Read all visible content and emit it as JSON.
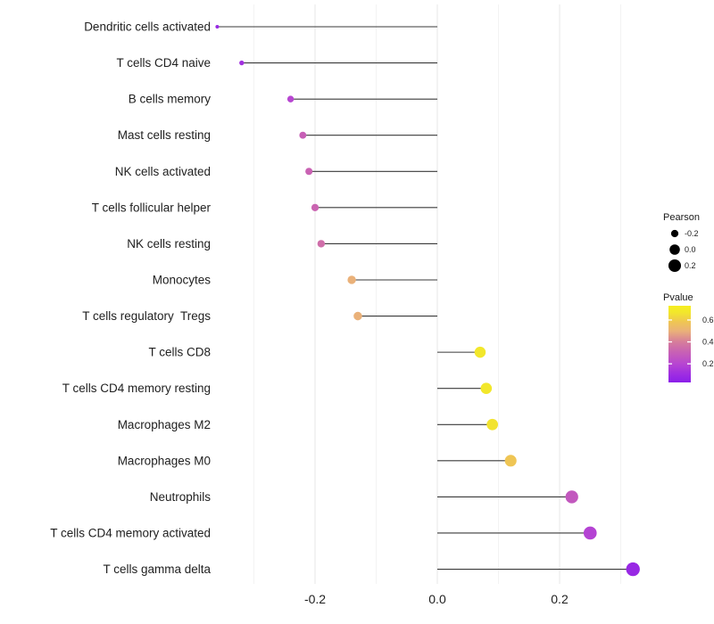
{
  "chart_data": {
    "type": "scatter",
    "subtype": "lollipop",
    "orientation": "horizontal",
    "title": "",
    "xlabel": "",
    "ylabel": "",
    "categories": [
      "Dendritic cells activated",
      "T cells CD4 naive",
      "B cells memory",
      "Mast cells resting",
      "NK cells activated",
      "T cells follicular helper",
      "NK cells resting",
      "Monocytes",
      "T cells regulatory  Tregs",
      "T cells CD8",
      "T cells CD4 memory resting",
      "Macrophages M2",
      "Macrophages M0",
      "Neutrophils",
      "T cells CD4 memory activated",
      "T cells gamma delta"
    ],
    "series": [
      {
        "name": "Pearson",
        "values": [
          -0.36,
          -0.32,
          -0.24,
          -0.22,
          -0.21,
          -0.2,
          -0.19,
          -0.14,
          -0.13,
          0.07,
          0.08,
          0.09,
          0.12,
          0.22,
          0.25,
          0.32
        ]
      },
      {
        "name": "Pvalue",
        "values": [
          0.08,
          0.12,
          0.2,
          0.3,
          0.31,
          0.32,
          0.35,
          0.5,
          0.5,
          0.67,
          0.67,
          0.66,
          0.58,
          0.27,
          0.19,
          0.08
        ]
      }
    ],
    "x_ticks": [
      {
        "label": "-0.2",
        "value": -0.2
      },
      {
        "label": "0.0",
        "value": 0.0
      },
      {
        "label": "0.2",
        "value": 0.2
      }
    ],
    "x_minor_gridlines": [
      -0.3,
      -0.1,
      0.1,
      0.3
    ],
    "xlim": [
      -0.38,
      0.345
    ],
    "grid": "vertical-only",
    "legend_position": "right",
    "baseline_x": 0.0
  },
  "legend": {
    "size": {
      "title": "Pearson",
      "dot_color": "#000000",
      "entries": [
        {
          "label": "-0.2",
          "value": -0.2
        },
        {
          "label": "0.0",
          "value": 0.0
        },
        {
          "label": "0.2",
          "value": 0.2
        }
      ]
    },
    "color": {
      "title": "Pvalue",
      "domain": [
        0.03,
        0.73
      ],
      "ticks": [
        {
          "label": "0.6",
          "value": 0.6
        },
        {
          "label": "0.4",
          "value": 0.4
        },
        {
          "label": "0.2",
          "value": 0.2
        }
      ],
      "stops": [
        [
          0.03,
          "#8b1fe9"
        ],
        [
          0.1,
          "#9d2ce2"
        ],
        [
          0.2,
          "#b746d1"
        ],
        [
          0.3,
          "#c75fb6"
        ],
        [
          0.4,
          "#d67d9b"
        ],
        [
          0.5,
          "#eab179"
        ],
        [
          0.58,
          "#efc554"
        ],
        [
          0.67,
          "#f2e72b"
        ],
        [
          0.73,
          "#f6ee20"
        ]
      ]
    }
  },
  "colors": {
    "background": "#ffffff",
    "stem": "#3a3a3a",
    "axis_text": "#212121",
    "legend_text": "#1a1a1a",
    "grid_major": "#e7e7e7",
    "grid_minor": "#f3f3f3"
  }
}
